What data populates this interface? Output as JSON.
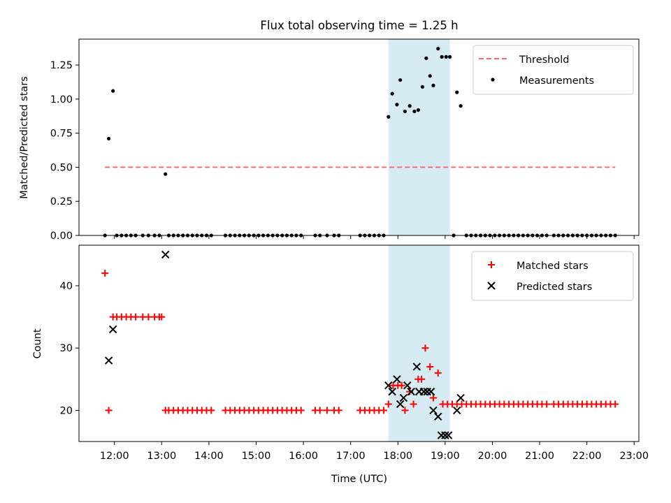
{
  "chart_data": {
    "title": "Flux total observing time = 1.25 h",
    "xlabel": "Time (UTC)",
    "x_unit": "hours UTC",
    "xlim": [
      11.25,
      23.1
    ],
    "x_ticks": [
      12,
      13,
      14,
      15,
      16,
      17,
      18,
      19,
      20,
      21,
      22,
      23
    ],
    "x_tick_labels": [
      "12:00",
      "13:00",
      "14:00",
      "15:00",
      "16:00",
      "17:00",
      "18:00",
      "19:00",
      "20:00",
      "21:00",
      "22:00",
      "23:00"
    ],
    "highlight": {
      "x": [
        17.8,
        19.1
      ],
      "color": "#add8e6"
    },
    "panels": [
      {
        "type": "scatter",
        "ylabel": "Matched/Predicted stars",
        "ylim": [
          0,
          1.44
        ],
        "y_ticks": [
          0,
          0.25,
          0.5,
          0.75,
          1.0,
          1.25
        ],
        "y_tick_labels": [
          "0.00",
          "0.25",
          "0.50",
          "0.75",
          "1.00",
          "1.25"
        ],
        "legend_position": "top-right",
        "threshold": {
          "name": "Threshold",
          "value": 0.5,
          "x": [
            11.8,
            22.6
          ],
          "color": "#ff6b6b"
        },
        "series": [
          {
            "name": "Measurements",
            "marker": "dot",
            "color": "#000000",
            "points": [
              [
                11.8,
                0
              ],
              [
                11.88,
                0.71
              ],
              [
                11.97,
                1.06
              ],
              [
                12.05,
                0
              ],
              [
                12.15,
                0
              ],
              [
                12.25,
                0
              ],
              [
                12.35,
                0
              ],
              [
                12.45,
                0
              ],
              [
                12.6,
                0
              ],
              [
                12.72,
                0
              ],
              [
                12.85,
                0
              ],
              [
                12.95,
                0
              ],
              [
                13.08,
                0.45
              ],
              [
                13.15,
                0
              ],
              [
                13.25,
                0
              ],
              [
                13.35,
                0
              ],
              [
                13.45,
                0
              ],
              [
                13.55,
                0
              ],
              [
                13.65,
                0
              ],
              [
                13.75,
                0
              ],
              [
                13.85,
                0
              ],
              [
                13.95,
                0
              ],
              [
                14.05,
                0
              ],
              [
                14.35,
                0
              ],
              [
                14.45,
                0
              ],
              [
                14.55,
                0
              ],
              [
                14.65,
                0
              ],
              [
                14.75,
                0
              ],
              [
                14.85,
                0
              ],
              [
                14.95,
                0
              ],
              [
                15.05,
                0
              ],
              [
                15.15,
                0
              ],
              [
                15.25,
                0
              ],
              [
                15.35,
                0
              ],
              [
                15.45,
                0
              ],
              [
                15.55,
                0
              ],
              [
                15.65,
                0
              ],
              [
                15.75,
                0
              ],
              [
                15.85,
                0
              ],
              [
                15.95,
                0
              ],
              [
                16.25,
                0
              ],
              [
                16.35,
                0
              ],
              [
                16.5,
                0
              ],
              [
                16.65,
                0
              ],
              [
                16.75,
                0
              ],
              [
                17.2,
                0
              ],
              [
                17.3,
                0
              ],
              [
                17.4,
                0
              ],
              [
                17.5,
                0
              ],
              [
                17.6,
                0
              ],
              [
                17.7,
                0
              ],
              [
                17.8,
                0.87
              ],
              [
                17.88,
                1.04
              ],
              [
                17.98,
                0.96
              ],
              [
                18.05,
                1.14
              ],
              [
                18.15,
                0.91
              ],
              [
                18.25,
                0.95
              ],
              [
                18.35,
                0.91
              ],
              [
                18.43,
                0.92
              ],
              [
                18.52,
                1.09
              ],
              [
                18.6,
                1.3
              ],
              [
                18.68,
                1.17
              ],
              [
                18.75,
                1.1
              ],
              [
                18.85,
                1.37
              ],
              [
                18.93,
                1.31
              ],
              [
                19.02,
                1.31
              ],
              [
                19.1,
                1.31
              ],
              [
                19.18,
                0
              ],
              [
                19.25,
                1.05
              ],
              [
                19.33,
                0.95
              ],
              [
                19.45,
                0
              ],
              [
                19.55,
                0
              ],
              [
                19.65,
                0
              ],
              [
                19.75,
                0
              ],
              [
                19.85,
                0
              ],
              [
                19.95,
                0
              ],
              [
                20.05,
                0
              ],
              [
                20.15,
                0
              ],
              [
                20.25,
                0
              ],
              [
                20.35,
                0
              ],
              [
                20.45,
                0
              ],
              [
                20.55,
                0
              ],
              [
                20.65,
                0
              ],
              [
                20.75,
                0
              ],
              [
                20.85,
                0
              ],
              [
                20.95,
                0
              ],
              [
                21.05,
                0
              ],
              [
                21.15,
                0
              ],
              [
                21.3,
                0
              ],
              [
                21.4,
                0
              ],
              [
                21.5,
                0
              ],
              [
                21.6,
                0
              ],
              [
                21.7,
                0
              ],
              [
                21.8,
                0
              ],
              [
                21.9,
                0
              ],
              [
                22.0,
                0
              ],
              [
                22.1,
                0
              ],
              [
                22.2,
                0
              ],
              [
                22.3,
                0
              ],
              [
                22.4,
                0
              ],
              [
                22.5,
                0
              ],
              [
                22.6,
                0
              ]
            ]
          }
        ]
      },
      {
        "type": "scatter",
        "ylabel": "Count",
        "ylim": [
          15,
          46.5
        ],
        "y_ticks": [
          20,
          30,
          40
        ],
        "y_tick_labels": [
          "20",
          "30",
          "40"
        ],
        "legend_position": "top-right",
        "series": [
          {
            "name": "Matched stars",
            "marker": "plus",
            "color": "#ff0000",
            "points": [
              [
                11.8,
                42
              ],
              [
                11.88,
                20
              ],
              [
                11.97,
                35
              ],
              [
                12.05,
                35
              ],
              [
                12.15,
                35
              ],
              [
                12.25,
                35
              ],
              [
                12.35,
                35
              ],
              [
                12.45,
                35
              ],
              [
                12.6,
                35
              ],
              [
                12.72,
                35
              ],
              [
                12.85,
                35
              ],
              [
                12.95,
                35
              ],
              [
                13.0,
                35
              ],
              [
                13.08,
                20
              ],
              [
                13.15,
                20
              ],
              [
                13.25,
                20
              ],
              [
                13.35,
                20
              ],
              [
                13.45,
                20
              ],
              [
                13.55,
                20
              ],
              [
                13.65,
                20
              ],
              [
                13.75,
                20
              ],
              [
                13.85,
                20
              ],
              [
                13.95,
                20
              ],
              [
                14.05,
                20
              ],
              [
                14.35,
                20
              ],
              [
                14.45,
                20
              ],
              [
                14.55,
                20
              ],
              [
                14.65,
                20
              ],
              [
                14.75,
                20
              ],
              [
                14.85,
                20
              ],
              [
                14.95,
                20
              ],
              [
                15.05,
                20
              ],
              [
                15.15,
                20
              ],
              [
                15.25,
                20
              ],
              [
                15.35,
                20
              ],
              [
                15.45,
                20
              ],
              [
                15.55,
                20
              ],
              [
                15.65,
                20
              ],
              [
                15.75,
                20
              ],
              [
                15.85,
                20
              ],
              [
                15.95,
                20
              ],
              [
                16.25,
                20
              ],
              [
                16.35,
                20
              ],
              [
                16.5,
                20
              ],
              [
                16.65,
                20
              ],
              [
                16.75,
                20
              ],
              [
                17.2,
                20
              ],
              [
                17.3,
                20
              ],
              [
                17.4,
                20
              ],
              [
                17.5,
                20
              ],
              [
                17.6,
                20
              ],
              [
                17.7,
                20
              ],
              [
                17.8,
                21
              ],
              [
                17.9,
                24
              ],
              [
                18.0,
                24
              ],
              [
                18.08,
                24
              ],
              [
                18.15,
                20
              ],
              [
                18.25,
                23
              ],
              [
                18.33,
                21
              ],
              [
                18.43,
                25
              ],
              [
                18.5,
                25
              ],
              [
                18.58,
                30
              ],
              [
                18.68,
                27
              ],
              [
                18.75,
                22
              ],
              [
                18.85,
                26
              ],
              [
                18.95,
                21
              ],
              [
                19.05,
                21
              ],
              [
                19.15,
                21
              ],
              [
                19.25,
                21
              ],
              [
                19.35,
                21
              ],
              [
                19.45,
                21
              ],
              [
                19.55,
                21
              ],
              [
                19.65,
                21
              ],
              [
                19.75,
                21
              ],
              [
                19.85,
                21
              ],
              [
                19.95,
                21
              ],
              [
                20.05,
                21
              ],
              [
                20.15,
                21
              ],
              [
                20.25,
                21
              ],
              [
                20.35,
                21
              ],
              [
                20.45,
                21
              ],
              [
                20.55,
                21
              ],
              [
                20.65,
                21
              ],
              [
                20.75,
                21
              ],
              [
                20.85,
                21
              ],
              [
                20.95,
                21
              ],
              [
                21.05,
                21
              ],
              [
                21.15,
                21
              ],
              [
                21.3,
                21
              ],
              [
                21.4,
                21
              ],
              [
                21.5,
                21
              ],
              [
                21.6,
                21
              ],
              [
                21.7,
                21
              ],
              [
                21.8,
                21
              ],
              [
                21.9,
                21
              ],
              [
                22.0,
                21
              ],
              [
                22.1,
                21
              ],
              [
                22.2,
                21
              ],
              [
                22.3,
                21
              ],
              [
                22.4,
                21
              ],
              [
                22.5,
                21
              ],
              [
                22.6,
                21
              ]
            ]
          },
          {
            "name": "Predicted stars",
            "marker": "x",
            "color": "#000000",
            "points": [
              [
                11.88,
                28
              ],
              [
                11.97,
                33
              ],
              [
                13.08,
                45
              ],
              [
                17.8,
                24
              ],
              [
                17.88,
                23
              ],
              [
                17.98,
                25
              ],
              [
                18.05,
                21
              ],
              [
                18.12,
                22
              ],
              [
                18.2,
                24
              ],
              [
                18.28,
                23
              ],
              [
                18.4,
                27
              ],
              [
                18.45,
                23
              ],
              [
                18.55,
                23
              ],
              [
                18.62,
                23
              ],
              [
                18.7,
                23
              ],
              [
                18.75,
                20
              ],
              [
                18.85,
                19
              ],
              [
                18.92,
                16
              ],
              [
                19.0,
                16
              ],
              [
                19.07,
                16
              ],
              [
                19.25,
                20
              ],
              [
                19.33,
                22
              ]
            ]
          }
        ]
      }
    ]
  }
}
